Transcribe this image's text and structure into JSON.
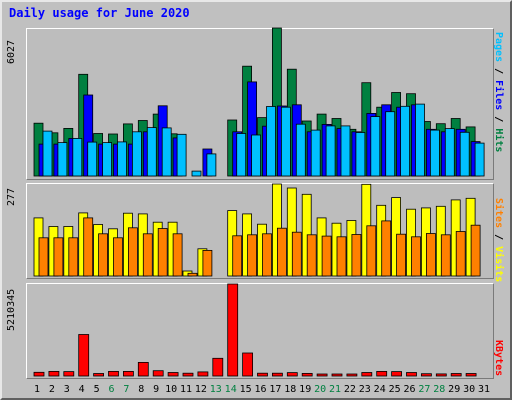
{
  "chart_data": [
    {
      "type": "bar",
      "title": "Daily usage for June 2020",
      "categories": [
        "1",
        "2",
        "3",
        "4",
        "5",
        "6",
        "7",
        "8",
        "9",
        "10",
        "11",
        "12",
        "13",
        "14",
        "15",
        "16",
        "17",
        "18",
        "19",
        "20",
        "21",
        "22",
        "23",
        "24",
        "25",
        "26",
        "27",
        "28",
        "29",
        "30",
        "31"
      ],
      "weekend_days": [
        "6",
        "7",
        "13",
        "14",
        "20",
        "21",
        "27",
        "28"
      ],
      "ylim": [
        0,
        6027
      ],
      "ymax_label": "6027",
      "series": [
        {
          "name": "Hits",
          "color": "#008040",
          "values": [
            2150,
            1760,
            1940,
            4140,
            1730,
            1710,
            2120,
            2260,
            2520,
            1720,
            0,
            0,
            0,
            2280,
            4470,
            2380,
            6027,
            4350,
            2240,
            2520,
            2340,
            1900,
            3800,
            2800,
            3400,
            3350,
            2220,
            2130,
            2340,
            2000,
            0
          ]
        },
        {
          "name": "Files",
          "color": "#0000ff",
          "values": [
            1300,
            1300,
            1530,
            3300,
            1300,
            1300,
            1300,
            1800,
            2860,
            1550,
            0,
            1100,
            0,
            1800,
            3830,
            2030,
            2850,
            2900,
            1800,
            2100,
            1930,
            1800,
            2550,
            2900,
            2800,
            2900,
            1900,
            1800,
            1900,
            1400,
            0
          ]
        },
        {
          "name": "Pages",
          "color": "#00c0ff",
          "values": [
            1830,
            1360,
            1530,
            1380,
            1360,
            1390,
            1800,
            1970,
            1960,
            1700,
            200,
            900,
            0,
            1730,
            1670,
            2830,
            2800,
            2110,
            1870,
            2040,
            2040,
            1770,
            2420,
            2620,
            2840,
            2930,
            1870,
            1930,
            1780,
            1340,
            0
          ]
        }
      ],
      "right_labels": [
        {
          "text": "Pages",
          "color": "#00c0ff"
        },
        {
          "text": " / ",
          "color": "#000000"
        },
        {
          "text": "Files",
          "color": "#0000ff"
        },
        {
          "text": " / ",
          "color": "#000000"
        },
        {
          "text": "Hits",
          "color": "#008040"
        }
      ]
    },
    {
      "type": "bar",
      "ylim": [
        0,
        277
      ],
      "ymax_label": "277",
      "series": [
        {
          "name": "Visits",
          "color": "#ffff00",
          "values": [
            175,
            149,
            149,
            190,
            155,
            142,
            189,
            187,
            162,
            162,
            15,
            82,
            0,
            197,
            187,
            156,
            277,
            265,
            246,
            175,
            159,
            167,
            276,
            213,
            236,
            201,
            205,
            210,
            229,
            234,
            0
          ]
        },
        {
          "name": "Sites",
          "color": "#ff8000",
          "values": [
            115,
            115,
            115,
            175,
            127,
            115,
            145,
            127,
            143,
            127,
            8,
            77,
            0,
            121,
            124,
            127,
            144,
            132,
            124,
            120,
            118,
            125,
            151,
            166,
            126,
            118,
            128,
            124,
            134,
            153,
            0
          ]
        }
      ],
      "right_labels": [
        {
          "text": "Sites",
          "color": "#ff8000"
        },
        {
          "text": " / ",
          "color": "#000000"
        },
        {
          "text": "Visits",
          "color": "#ffff00"
        }
      ]
    },
    {
      "type": "bar",
      "ylim": [
        0,
        5210345
      ],
      "ymax_label": "5210345",
      "series": [
        {
          "name": "KBytes",
          "color": "#ff0000",
          "values": [
            210000,
            260000,
            250000,
            2350000,
            140000,
            260000,
            260000,
            770000,
            300000,
            200000,
            160000,
            230000,
            1000000,
            5210345,
            1300000,
            160000,
            160000,
            190000,
            150000,
            70000,
            70000,
            60000,
            200000,
            260000,
            250000,
            200000,
            130000,
            120000,
            140000,
            140000,
            0
          ]
        }
      ],
      "right_labels": [
        {
          "text": "KBytes",
          "color": "#ff0000"
        }
      ]
    }
  ]
}
